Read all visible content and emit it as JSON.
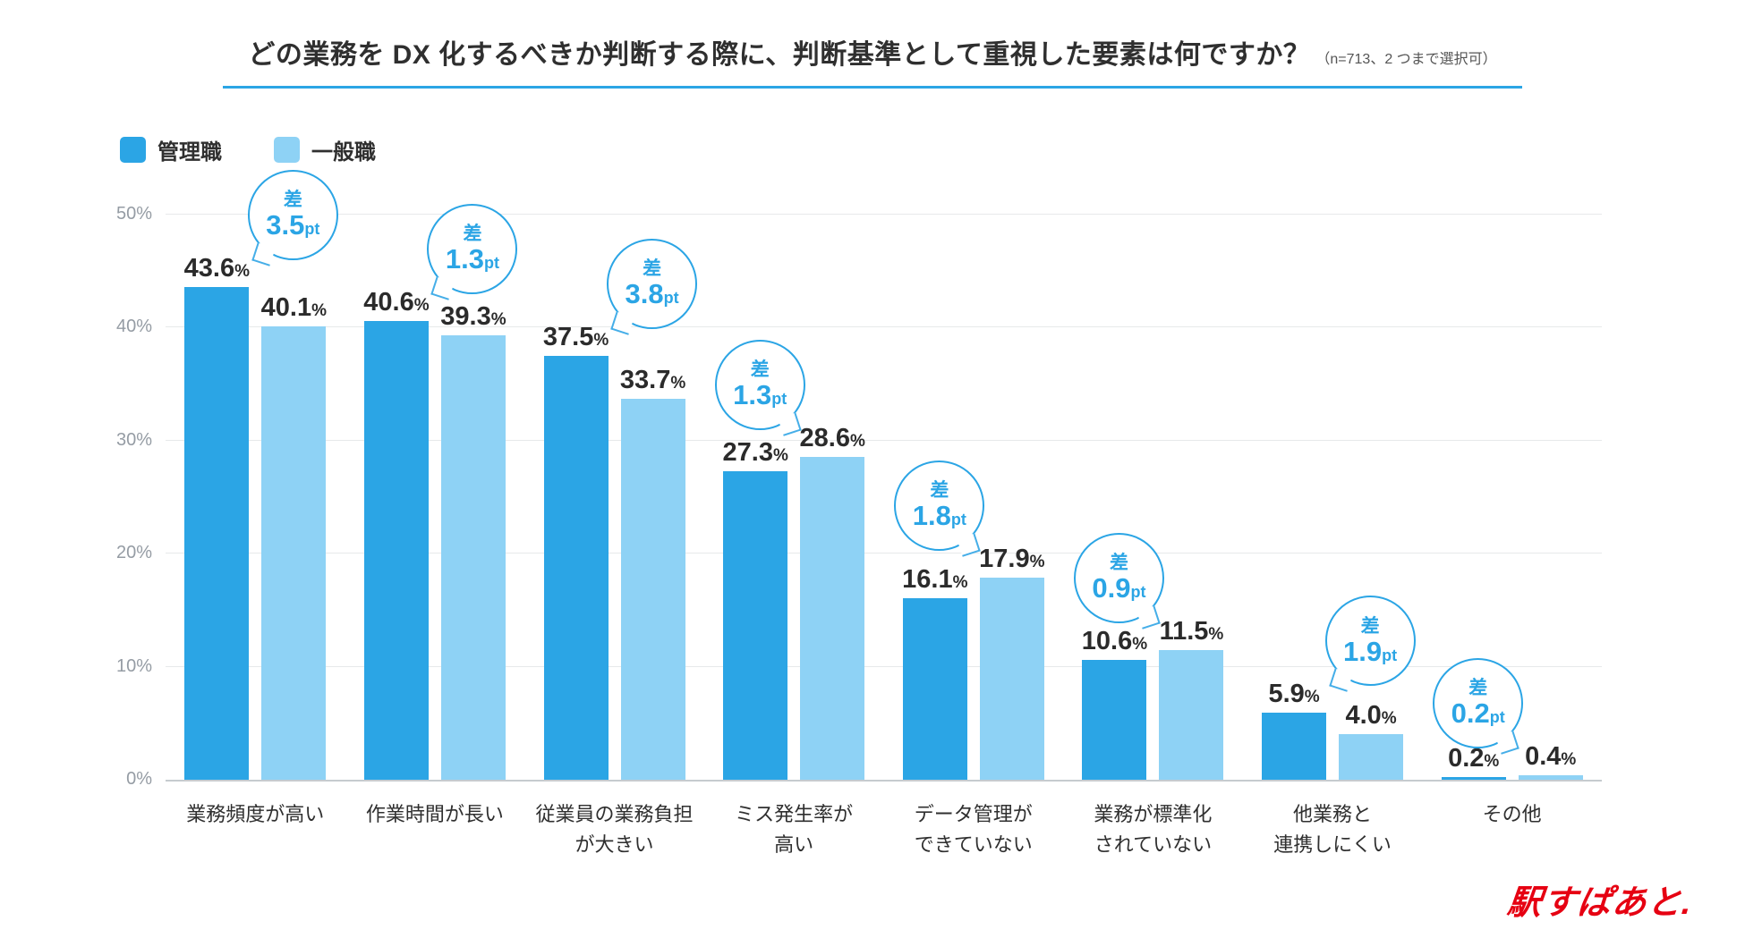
{
  "header": {
    "title": "どの業務を DX 化するべきか判断する際に、判断基準として重視した要素は何ですか？",
    "subtitle": "（n=713、2 つまで選択可）",
    "underline_color": "#2BA5E5"
  },
  "legend": {
    "items": [
      {
        "label": "管理職",
        "color": "#2BA5E5"
      },
      {
        "label": "一般職",
        "color": "#8ED2F5"
      }
    ]
  },
  "logo": {
    "text": "駅すぱあと.",
    "color": "#E60012"
  },
  "chart_data": {
    "type": "bar",
    "title": "どの業務を DX 化するべきか判断する際に、判断基準として重視した要素は何ですか？",
    "subtitle": "（n=713、2 つまで選択可）",
    "unit": "%",
    "ylim": [
      0,
      50
    ],
    "yticks": [
      "0%",
      "10%",
      "20%",
      "30%",
      "40%",
      "50%"
    ],
    "grid": "horizontal",
    "legend_position": "top-left",
    "categories": [
      "業務頻度が高い",
      "作業時間が長い",
      "従業員の業務負担\nが大きい",
      "ミス発生率が\n高い",
      "データ管理が\nできていない",
      "業務が標準化\nされていない",
      "他業務と\n連携しにくい",
      "その他"
    ],
    "series": [
      {
        "name": "管理職",
        "color": "#2BA5E5",
        "values": [
          43.6,
          40.6,
          37.5,
          27.3,
          16.1,
          10.6,
          5.9,
          0.2
        ]
      },
      {
        "name": "一般職",
        "color": "#8ED2F5",
        "values": [
          40.1,
          39.3,
          33.7,
          28.6,
          17.9,
          11.5,
          4.0,
          0.4
        ]
      }
    ],
    "diffs": [
      {
        "prefix": "差",
        "value": 3.5,
        "unit": "pt",
        "tail": "left"
      },
      {
        "prefix": "差",
        "value": 1.3,
        "unit": "pt",
        "tail": "left"
      },
      {
        "prefix": "差",
        "value": 3.8,
        "unit": "pt",
        "tail": "left"
      },
      {
        "prefix": "差",
        "value": 1.3,
        "unit": "pt",
        "tail": "right"
      },
      {
        "prefix": "差",
        "value": 1.8,
        "unit": "pt",
        "tail": "right"
      },
      {
        "prefix": "差",
        "value": 0.9,
        "unit": "pt",
        "tail": "right"
      },
      {
        "prefix": "差",
        "value": 1.9,
        "unit": "pt",
        "tail": "left"
      },
      {
        "prefix": "差",
        "value": 0.2,
        "unit": "pt",
        "tail": "right"
      }
    ],
    "colors": {
      "value_text": "#2b2b2b",
      "axis_text": "#959CA4",
      "gridline": "#E7E9EA",
      "baseline": "#C6CBCF",
      "bubble": "#2BA5E5"
    }
  }
}
